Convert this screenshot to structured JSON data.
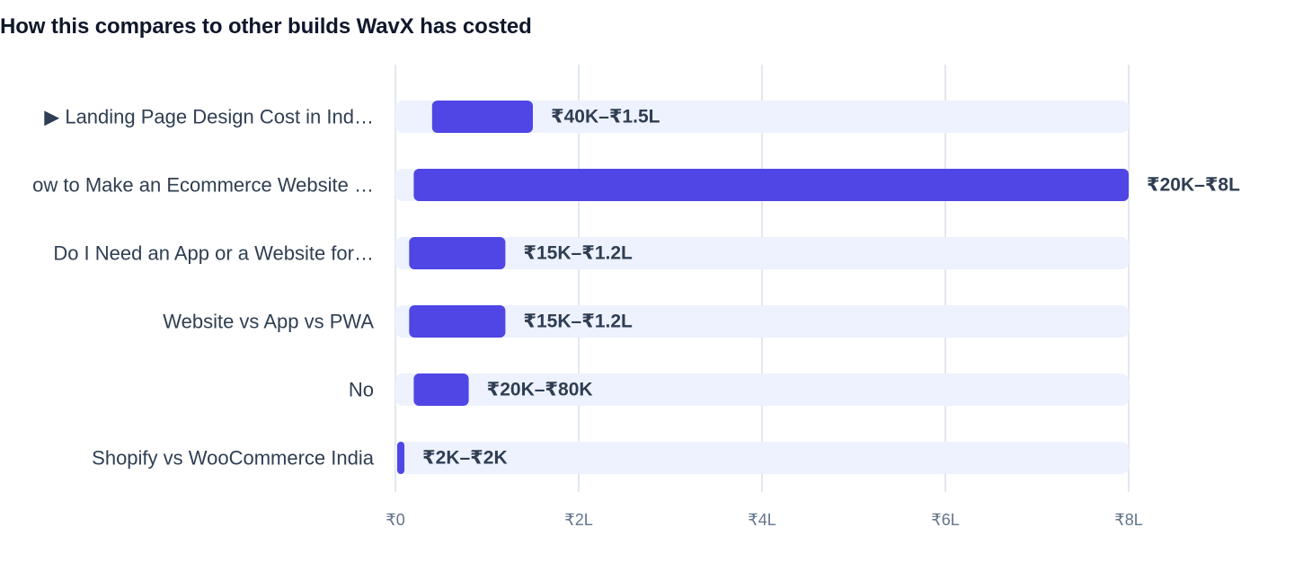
{
  "chart_data": {
    "type": "bar",
    "orientation": "horizontal",
    "title": "How this compares to other builds WavX has costed",
    "xlabel": "",
    "ylabel": "",
    "grid": true,
    "xlim": [
      0,
      800000
    ],
    "x_ticks": [
      {
        "value": 0,
        "label": "₹0"
      },
      {
        "value": 200000,
        "label": "₹2L"
      },
      {
        "value": 400000,
        "label": "₹4L"
      },
      {
        "value": 600000,
        "label": "₹6L"
      },
      {
        "value": 800000,
        "label": "₹8L"
      }
    ],
    "categories": [
      "▶ Landing Page Design Cost in Ind…",
      "ow to Make an Ecommerce Website …",
      "Do I Need an App or a Website for…",
      "Website vs App vs PWA",
      "No",
      "Shopify vs WooCommerce India"
    ],
    "ranges": [
      {
        "low": 40000,
        "high": 150000,
        "label": "₹40K–₹1.5L"
      },
      {
        "low": 20000,
        "high": 800000,
        "label": "₹20K–₹8L"
      },
      {
        "low": 15000,
        "high": 120000,
        "label": "₹15K–₹1.2L"
      },
      {
        "low": 15000,
        "high": 120000,
        "label": "₹15K–₹1.2L"
      },
      {
        "low": 20000,
        "high": 80000,
        "label": "₹20K–₹80K"
      },
      {
        "low": 2000,
        "high": 2000,
        "label": "₹2K–₹2K"
      }
    ],
    "colors": {
      "bar": "#4f46e5",
      "track": "#eef2ff",
      "grid": "#e2e8f0",
      "label": "#2f3e52",
      "tick": "#64748b"
    }
  }
}
